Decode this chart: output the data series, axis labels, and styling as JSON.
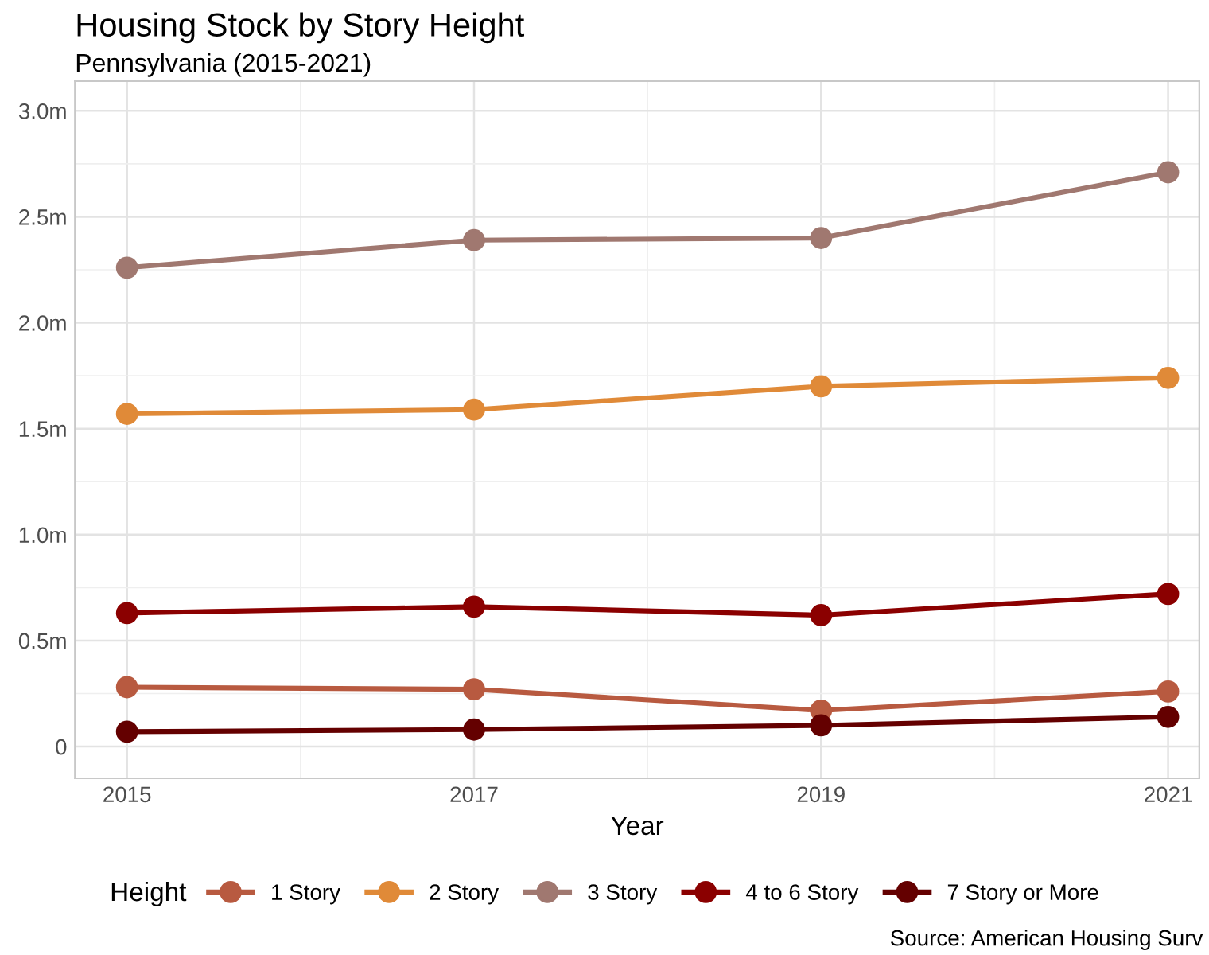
{
  "chart_data": {
    "type": "line",
    "title": "Housing Stock by Story Height",
    "subtitle": "Pennsylvania (2015-2021)",
    "xlabel": "Year",
    "legend_title": "Height",
    "annotations": [
      "Source: American Housing Surv"
    ],
    "x": [
      2015,
      2017,
      2019,
      2021
    ],
    "series": [
      {
        "name": "1 Story",
        "color": "#b85a40",
        "values": [
          0.28,
          0.27,
          0.17,
          0.26
        ]
      },
      {
        "name": "2 Story",
        "color": "#e08a38",
        "values": [
          1.57,
          1.59,
          1.7,
          1.74
        ]
      },
      {
        "name": "3 Story",
        "color": "#a07870",
        "values": [
          2.26,
          2.39,
          2.4,
          2.71
        ]
      },
      {
        "name": "4 to 6 Story",
        "color": "#8b0000",
        "values": [
          0.63,
          0.66,
          0.62,
          0.72
        ]
      },
      {
        "name": "7 Story or More",
        "color": "#640000",
        "values": [
          0.07,
          0.08,
          0.1,
          0.14
        ]
      }
    ],
    "xlim": [
      2014.7,
      2021.18
    ],
    "ylim": [
      -0.15,
      3.14
    ],
    "xticks": [
      2015,
      2017,
      2019,
      2021
    ],
    "yticks": [
      0,
      {
        "value": 0.5,
        "label": "0.5m"
      },
      {
        "value": 1.0,
        "label": "1.0m"
      },
      {
        "value": 1.5,
        "label": "1.5m"
      },
      {
        "value": 2.0,
        "label": "2.0m"
      },
      {
        "value": 2.5,
        "label": "2.5m"
      },
      {
        "value": 3.0,
        "label": "3.0m"
      }
    ],
    "grid": true,
    "legend": "bottom",
    "marker": "circle",
    "line_style": "solid"
  }
}
